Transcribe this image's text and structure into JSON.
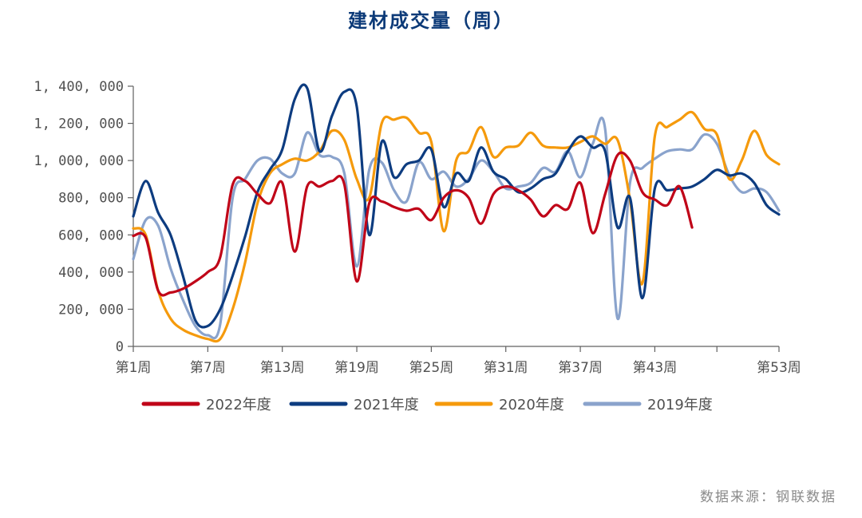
{
  "chart_data": {
    "type": "line",
    "title": "建材成交量（周）",
    "title_color": "#0c3a78",
    "xlabel": "",
    "ylabel": "",
    "x": [
      1,
      2,
      3,
      4,
      5,
      6,
      7,
      8,
      9,
      10,
      11,
      12,
      13,
      14,
      15,
      16,
      17,
      18,
      19,
      20,
      21,
      22,
      23,
      24,
      25,
      26,
      27,
      28,
      29,
      30,
      31,
      32,
      33,
      34,
      35,
      36,
      37,
      38,
      39,
      40,
      41,
      42,
      43,
      44,
      45,
      46,
      47,
      48,
      49,
      50,
      51,
      52,
      53
    ],
    "x_tick_positions": [
      1,
      7,
      13,
      19,
      25,
      31,
      37,
      43,
      48,
      53
    ],
    "x_tick_labels": [
      "第1周",
      "第7周",
      "第13周",
      "第19周",
      "第25周",
      "第31周",
      "第37周",
      "第43周",
      "",
      "第53周"
    ],
    "ylim": [
      0,
      1400000
    ],
    "y_ticks": [
      0,
      200000,
      400000,
      600000,
      800000,
      1000000,
      1200000,
      1400000
    ],
    "y_tick_labels": [
      "0",
      "200, 000",
      "400, 000",
      "600, 000",
      "800, 000",
      "1, 000, 000",
      "1, 200, 000",
      "1, 400, 000"
    ],
    "grid": false,
    "legend_position": "bottom",
    "series": [
      {
        "name": "2022年度",
        "color": "#c00418",
        "values": [
          595000,
          585000,
          300000,
          290000,
          310000,
          350000,
          400000,
          480000,
          870000,
          890000,
          820000,
          770000,
          880000,
          510000,
          860000,
          860000,
          890000,
          870000,
          350000,
          770000,
          780000,
          750000,
          730000,
          740000,
          680000,
          800000,
          840000,
          800000,
          660000,
          820000,
          860000,
          840000,
          790000,
          700000,
          760000,
          740000,
          880000,
          610000,
          820000,
          1030000,
          1000000,
          830000,
          790000,
          760000,
          860000,
          640000,
          null,
          null,
          null,
          null,
          null,
          null,
          null
        ]
      },
      {
        "name": "2021年度",
        "color": "#0d3c80",
        "values": [
          700000,
          890000,
          720000,
          600000,
          380000,
          140000,
          110000,
          200000,
          380000,
          590000,
          830000,
          950000,
          1060000,
          1330000,
          1390000,
          1050000,
          1240000,
          1370000,
          1290000,
          600000,
          1100000,
          910000,
          980000,
          1000000,
          1060000,
          750000,
          930000,
          890000,
          1070000,
          940000,
          900000,
          830000,
          850000,
          900000,
          930000,
          1050000,
          1130000,
          1070000,
          1050000,
          640000,
          800000,
          260000,
          850000,
          840000,
          850000,
          860000,
          900000,
          950000,
          920000,
          930000,
          880000,
          760000,
          710000
        ]
      },
      {
        "name": "2020年度",
        "color": "#f59a0c",
        "values": [
          635000,
          600000,
          300000,
          150000,
          90000,
          60000,
          40000,
          40000,
          200000,
          450000,
          770000,
          930000,
          980000,
          1010000,
          1000000,
          1050000,
          1160000,
          1110000,
          900000,
          800000,
          1200000,
          1220000,
          1230000,
          1150000,
          1100000,
          620000,
          1000000,
          1050000,
          1180000,
          1020000,
          1070000,
          1080000,
          1150000,
          1080000,
          1070000,
          1070000,
          1100000,
          1130000,
          1090000,
          1110000,
          790000,
          340000,
          1130000,
          1180000,
          1220000,
          1260000,
          1170000,
          1140000,
          900000,
          1000000,
          1160000,
          1030000,
          980000
        ]
      },
      {
        "name": "2019年度",
        "color": "#8aa3cc",
        "values": [
          470000,
          680000,
          650000,
          420000,
          250000,
          110000,
          60000,
          120000,
          800000,
          900000,
          1000000,
          1010000,
          930000,
          930000,
          1150000,
          1030000,
          1020000,
          930000,
          430000,
          950000,
          990000,
          840000,
          780000,
          990000,
          900000,
          940000,
          860000,
          900000,
          1000000,
          940000,
          850000,
          860000,
          880000,
          960000,
          940000,
          1050000,
          910000,
          1090000,
          1170000,
          150000,
          880000,
          960000,
          1010000,
          1050000,
          1060000,
          1060000,
          1140000,
          1090000,
          920000,
          830000,
          850000,
          830000,
          730000
        ]
      }
    ]
  },
  "source_text": "数据来源：钢联数据"
}
